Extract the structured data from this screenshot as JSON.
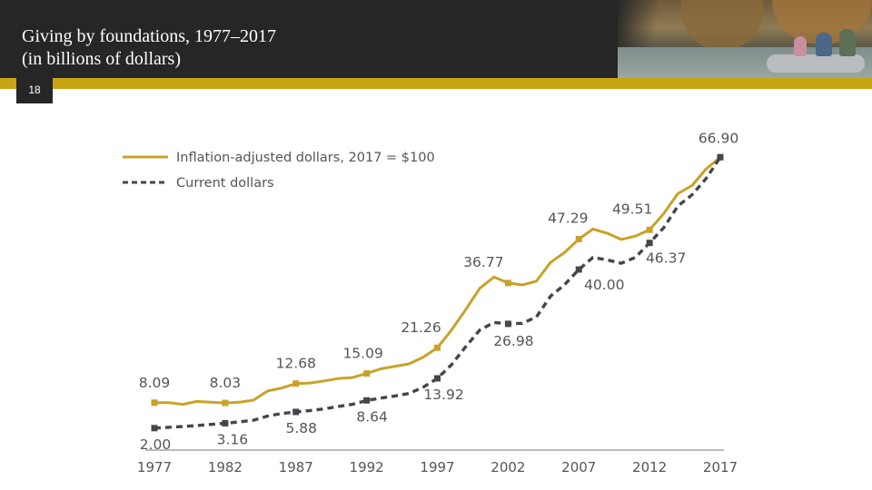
{
  "slide": {
    "title_line1": "Giving by foundations, 1977–2017",
    "title_line2": "(in billions of dollars)",
    "page_number": "18"
  },
  "colors": {
    "header": "#262626",
    "accent": "#c8a415",
    "inflation_line": "#c9a227",
    "current_line": "#45454c",
    "label_text": "#555555"
  },
  "chart_data": {
    "type": "line",
    "title": "Giving by foundations, 1977–2017 (in billions of dollars)",
    "xlabel": "",
    "ylabel": "",
    "ylim": [
      0,
      70
    ],
    "legend_position": "top-left",
    "x": [
      1977,
      1982,
      1987,
      1992,
      1997,
      2002,
      2007,
      2012,
      2017
    ],
    "x_tick_labels": [
      "1977",
      "1982",
      "1987",
      "1992",
      "1997",
      "2002",
      "2007",
      "2012",
      "2017"
    ],
    "series": [
      {
        "name": "Inflation-adjusted dollars, 2017 = $100",
        "style": "solid",
        "values": [
          8.09,
          8.03,
          12.68,
          15.09,
          21.26,
          36.77,
          47.29,
          49.51,
          66.9
        ],
        "labels": [
          "8.09",
          "8.03",
          "12.68",
          "15.09",
          "21.26",
          "36.77",
          "47.29",
          "49.51",
          "66.90"
        ],
        "trace": [
          [
            1977,
            8.09
          ],
          [
            1978,
            8.1
          ],
          [
            1979,
            7.7
          ],
          [
            1980,
            8.4
          ],
          [
            1981,
            8.2
          ],
          [
            1982,
            8.03
          ],
          [
            1983,
            8.2
          ],
          [
            1984,
            8.7
          ],
          [
            1985,
            10.9
          ],
          [
            1986,
            11.6
          ],
          [
            1987,
            12.68
          ],
          [
            1988,
            12.8
          ],
          [
            1989,
            13.3
          ],
          [
            1990,
            13.9
          ],
          [
            1991,
            14.1
          ],
          [
            1992,
            15.09
          ],
          [
            1993,
            16.2
          ],
          [
            1994,
            16.8
          ],
          [
            1995,
            17.4
          ],
          [
            1996,
            19.0
          ],
          [
            1997,
            21.26
          ],
          [
            1998,
            25.5
          ],
          [
            1999,
            30.4
          ],
          [
            2000,
            35.5
          ],
          [
            2001,
            38.2
          ],
          [
            2002,
            36.77
          ],
          [
            2003,
            36.3
          ],
          [
            2004,
            37.2
          ],
          [
            2005,
            41.7
          ],
          [
            2006,
            44.1
          ],
          [
            2007,
            47.29
          ],
          [
            2008,
            49.7
          ],
          [
            2009,
            48.7
          ],
          [
            2010,
            47.2
          ],
          [
            2011,
            48.0
          ],
          [
            2012,
            49.51
          ],
          [
            2013,
            53.4
          ],
          [
            2014,
            58.2
          ],
          [
            2015,
            60.1
          ],
          [
            2016,
            64.1
          ],
          [
            2017,
            66.9
          ]
        ]
      },
      {
        "name": "Current dollars",
        "style": "dashed",
        "values": [
          2.0,
          3.16,
          5.88,
          8.64,
          13.92,
          26.98,
          40.0,
          46.37,
          66.9
        ],
        "labels": [
          "2.00",
          "3.16",
          "5.88",
          "8.64",
          "13.92",
          "26.98",
          "40.00",
          "46.37",
          "66.90"
        ],
        "trace": [
          [
            1977,
            2.0
          ],
          [
            1978,
            2.2
          ],
          [
            1979,
            2.4
          ],
          [
            1980,
            2.6
          ],
          [
            1981,
            2.9
          ],
          [
            1982,
            3.16
          ],
          [
            1983,
            3.5
          ],
          [
            1984,
            3.9
          ],
          [
            1985,
            4.9
          ],
          [
            1986,
            5.5
          ],
          [
            1987,
            5.88
          ],
          [
            1988,
            6.2
          ],
          [
            1989,
            6.6
          ],
          [
            1990,
            7.2
          ],
          [
            1991,
            7.7
          ],
          [
            1992,
            8.64
          ],
          [
            1993,
            9.2
          ],
          [
            1994,
            9.7
          ],
          [
            1995,
            10.3
          ],
          [
            1996,
            11.8
          ],
          [
            1997,
            13.92
          ],
          [
            1998,
            17.2
          ],
          [
            1999,
            21.5
          ],
          [
            2000,
            25.5
          ],
          [
            2001,
            27.3
          ],
          [
            2002,
            26.98
          ],
          [
            2003,
            27.1
          ],
          [
            2004,
            28.6
          ],
          [
            2005,
            33.6
          ],
          [
            2006,
            36.4
          ],
          [
            2007,
            40.0
          ],
          [
            2008,
            42.9
          ],
          [
            2009,
            42.3
          ],
          [
            2010,
            41.5
          ],
          [
            2011,
            42.9
          ],
          [
            2012,
            46.37
          ],
          [
            2013,
            50.0
          ],
          [
            2014,
            55.2
          ],
          [
            2015,
            57.9
          ],
          [
            2016,
            61.8
          ],
          [
            2017,
            66.9
          ]
        ]
      }
    ]
  }
}
